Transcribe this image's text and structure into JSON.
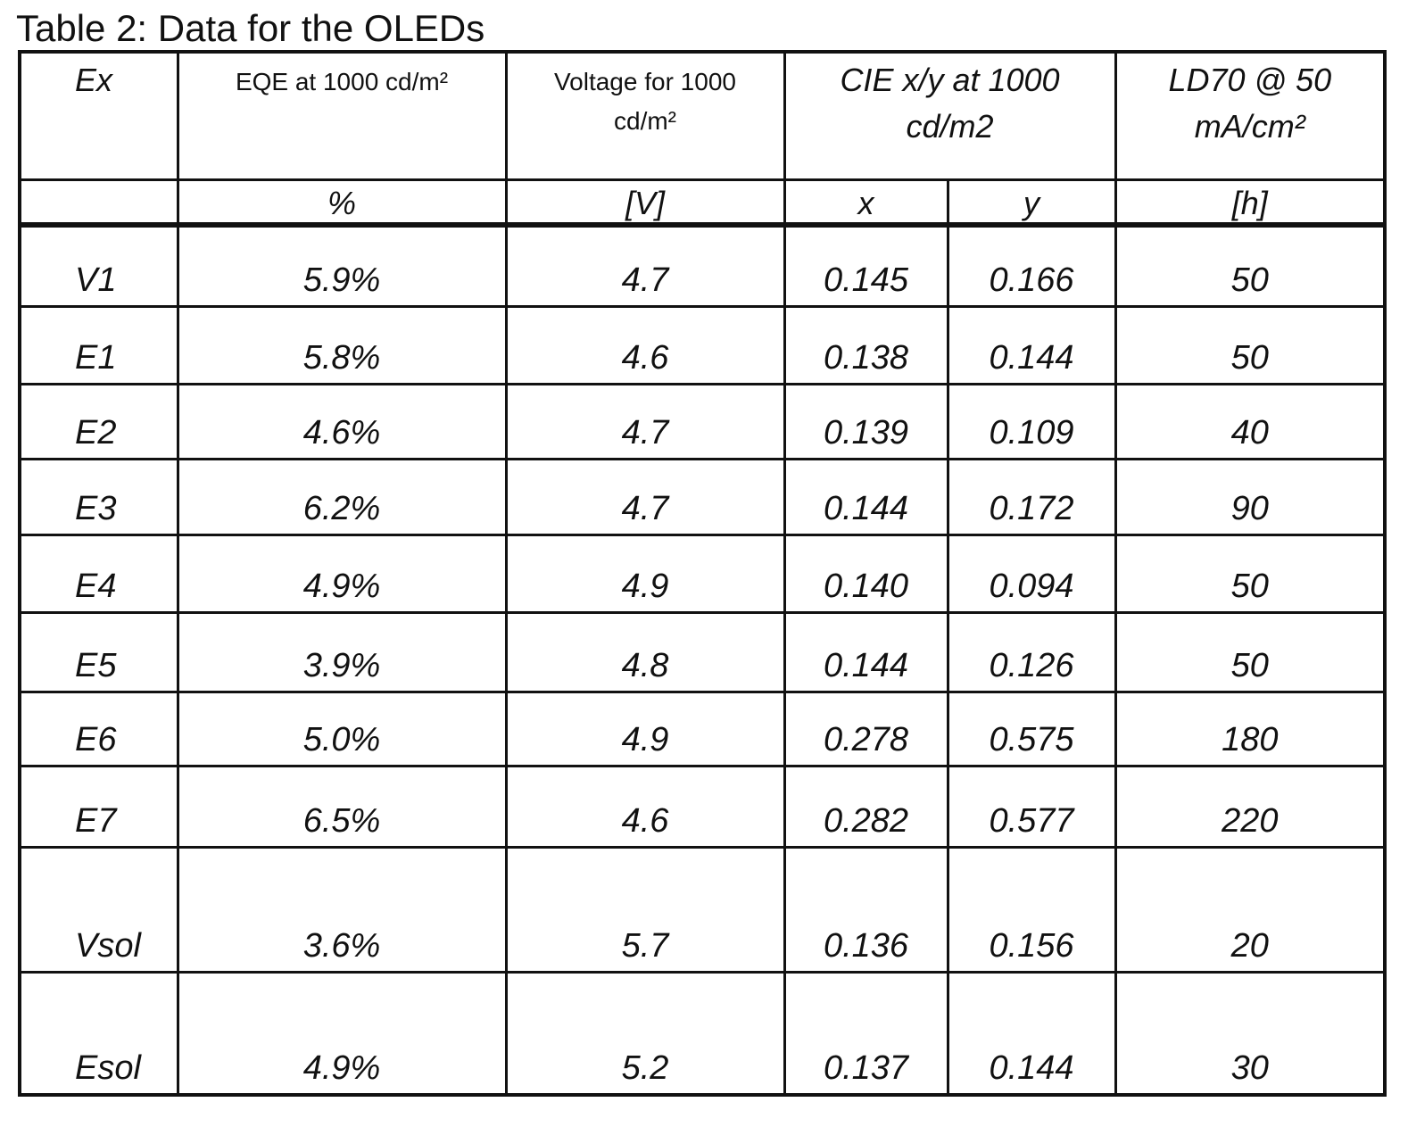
{
  "title": "Table 2: Data for the OLEDs",
  "table": {
    "headers": [
      "Ex",
      "EQE at 1000 cd/m²",
      "Voltage for 1000 cd/m²",
      "CIE x/y at 1000 cd/m2",
      "LD70 @ 50 mA/cm²"
    ],
    "units": [
      "%",
      "[V]",
      "x",
      "y",
      "[h]"
    ],
    "rows": [
      [
        "V1",
        "5.9%",
        "4.7",
        "0.145",
        "0.166",
        "50"
      ],
      [
        "E1",
        "5.8%",
        "4.6",
        "0.138",
        "0.144",
        "50"
      ],
      [
        "E2",
        "4.6%",
        "4.7",
        "0.139",
        "0.109",
        "40"
      ],
      [
        "E3",
        "6.2%",
        "4.7",
        "0.144",
        "0.172",
        "90"
      ],
      [
        "E4",
        "4.9%",
        "4.9",
        "0.140",
        "0.094",
        "50"
      ],
      [
        "E5",
        "3.9%",
        "4.8",
        "0.144",
        "0.126",
        "50"
      ],
      [
        "E6",
        "5.0%",
        "4.9",
        "0.278",
        "0.575",
        "180"
      ],
      [
        "E7",
        "6.5%",
        "4.6",
        "0.282",
        "0.577",
        "220"
      ],
      [
        "Vsol",
        "3.6%",
        "5.7",
        "0.136",
        "0.156",
        "20"
      ],
      [
        "Esol",
        "4.9%",
        "5.2",
        "0.137",
        "0.144",
        "30"
      ]
    ]
  }
}
